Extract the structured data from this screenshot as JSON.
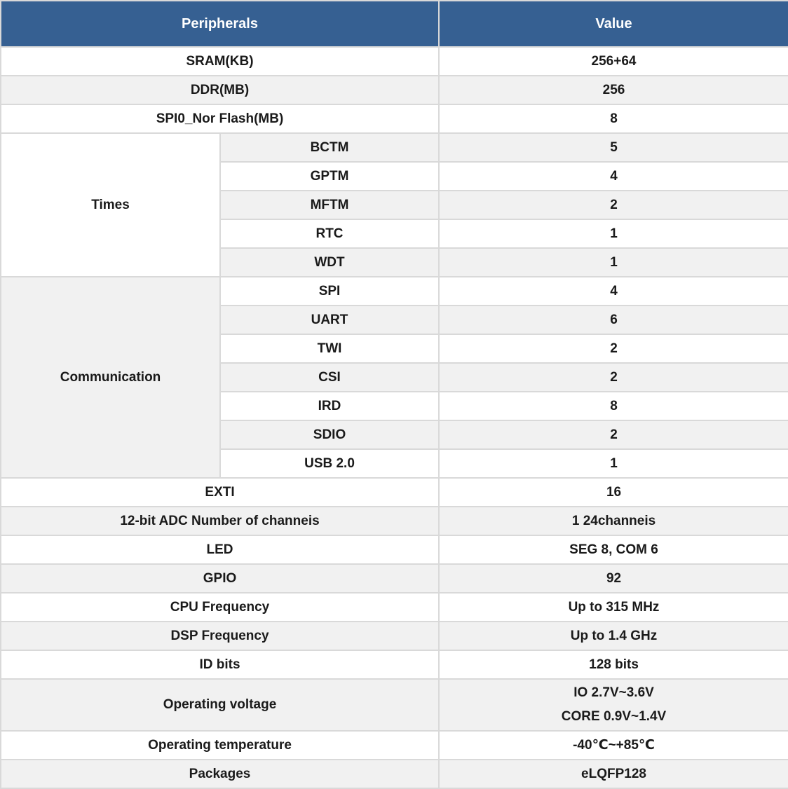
{
  "table": {
    "header": {
      "peripherals": "Peripherals",
      "value": "Value"
    },
    "rows": {
      "sram": {
        "label": "SRAM(KB)",
        "value": "256+64"
      },
      "ddr": {
        "label": "DDR(MB)",
        "value": "256"
      },
      "spi0_nor_flash": {
        "label": "SPI0_Nor Flash(MB)",
        "value": "8"
      },
      "exti": {
        "label": "EXTI",
        "value": "16"
      },
      "adc_channels": {
        "label": "12-bit ADC Number of channeis",
        "value": "1 24channeis"
      },
      "led": {
        "label": "LED",
        "value": "SEG 8, COM 6"
      },
      "gpio": {
        "label": "GPIO",
        "value": "92"
      },
      "cpu_frequency": {
        "label": "CPU Frequency",
        "value": "Up to 315 MHz"
      },
      "dsp_frequency": {
        "label": "DSP Frequency",
        "value": "Up to 1.4 GHz"
      },
      "id_bits": {
        "label": "ID bits",
        "value": "128 bits"
      },
      "operating_voltage": {
        "label": "Operating voltage",
        "lines": [
          "IO 2.7V~3.6V",
          "CORE 0.9V~1.4V"
        ]
      },
      "operating_temperature": {
        "label": "Operating temperature",
        "value": "-40℃~+85℃"
      },
      "packages": {
        "label": "Packages",
        "value": "eLQFP128"
      }
    },
    "groups": {
      "times": {
        "label": "Times",
        "items": [
          {
            "label": "BCTM",
            "value": "5"
          },
          {
            "label": "GPTM",
            "value": "4"
          },
          {
            "label": "MFTM",
            "value": "2"
          },
          {
            "label": "RTC",
            "value": "1"
          },
          {
            "label": "WDT",
            "value": "1"
          }
        ]
      },
      "communication": {
        "label": "Communication",
        "items": [
          {
            "label": "SPI",
            "value": "4"
          },
          {
            "label": "UART",
            "value": "6"
          },
          {
            "label": "TWI",
            "value": "2"
          },
          {
            "label": "CSI",
            "value": "2"
          },
          {
            "label": "IRD",
            "value": "8"
          },
          {
            "label": "SDIO",
            "value": "2"
          },
          {
            "label": "USB 2.0",
            "value": "1"
          }
        ]
      }
    },
    "colors": {
      "header_bg": "#366092",
      "header_text": "#ffffff",
      "alt_row_bg": "#f1f1f1",
      "grid_line": "#d9d9d9",
      "body_text": "#1a1a1a"
    }
  }
}
